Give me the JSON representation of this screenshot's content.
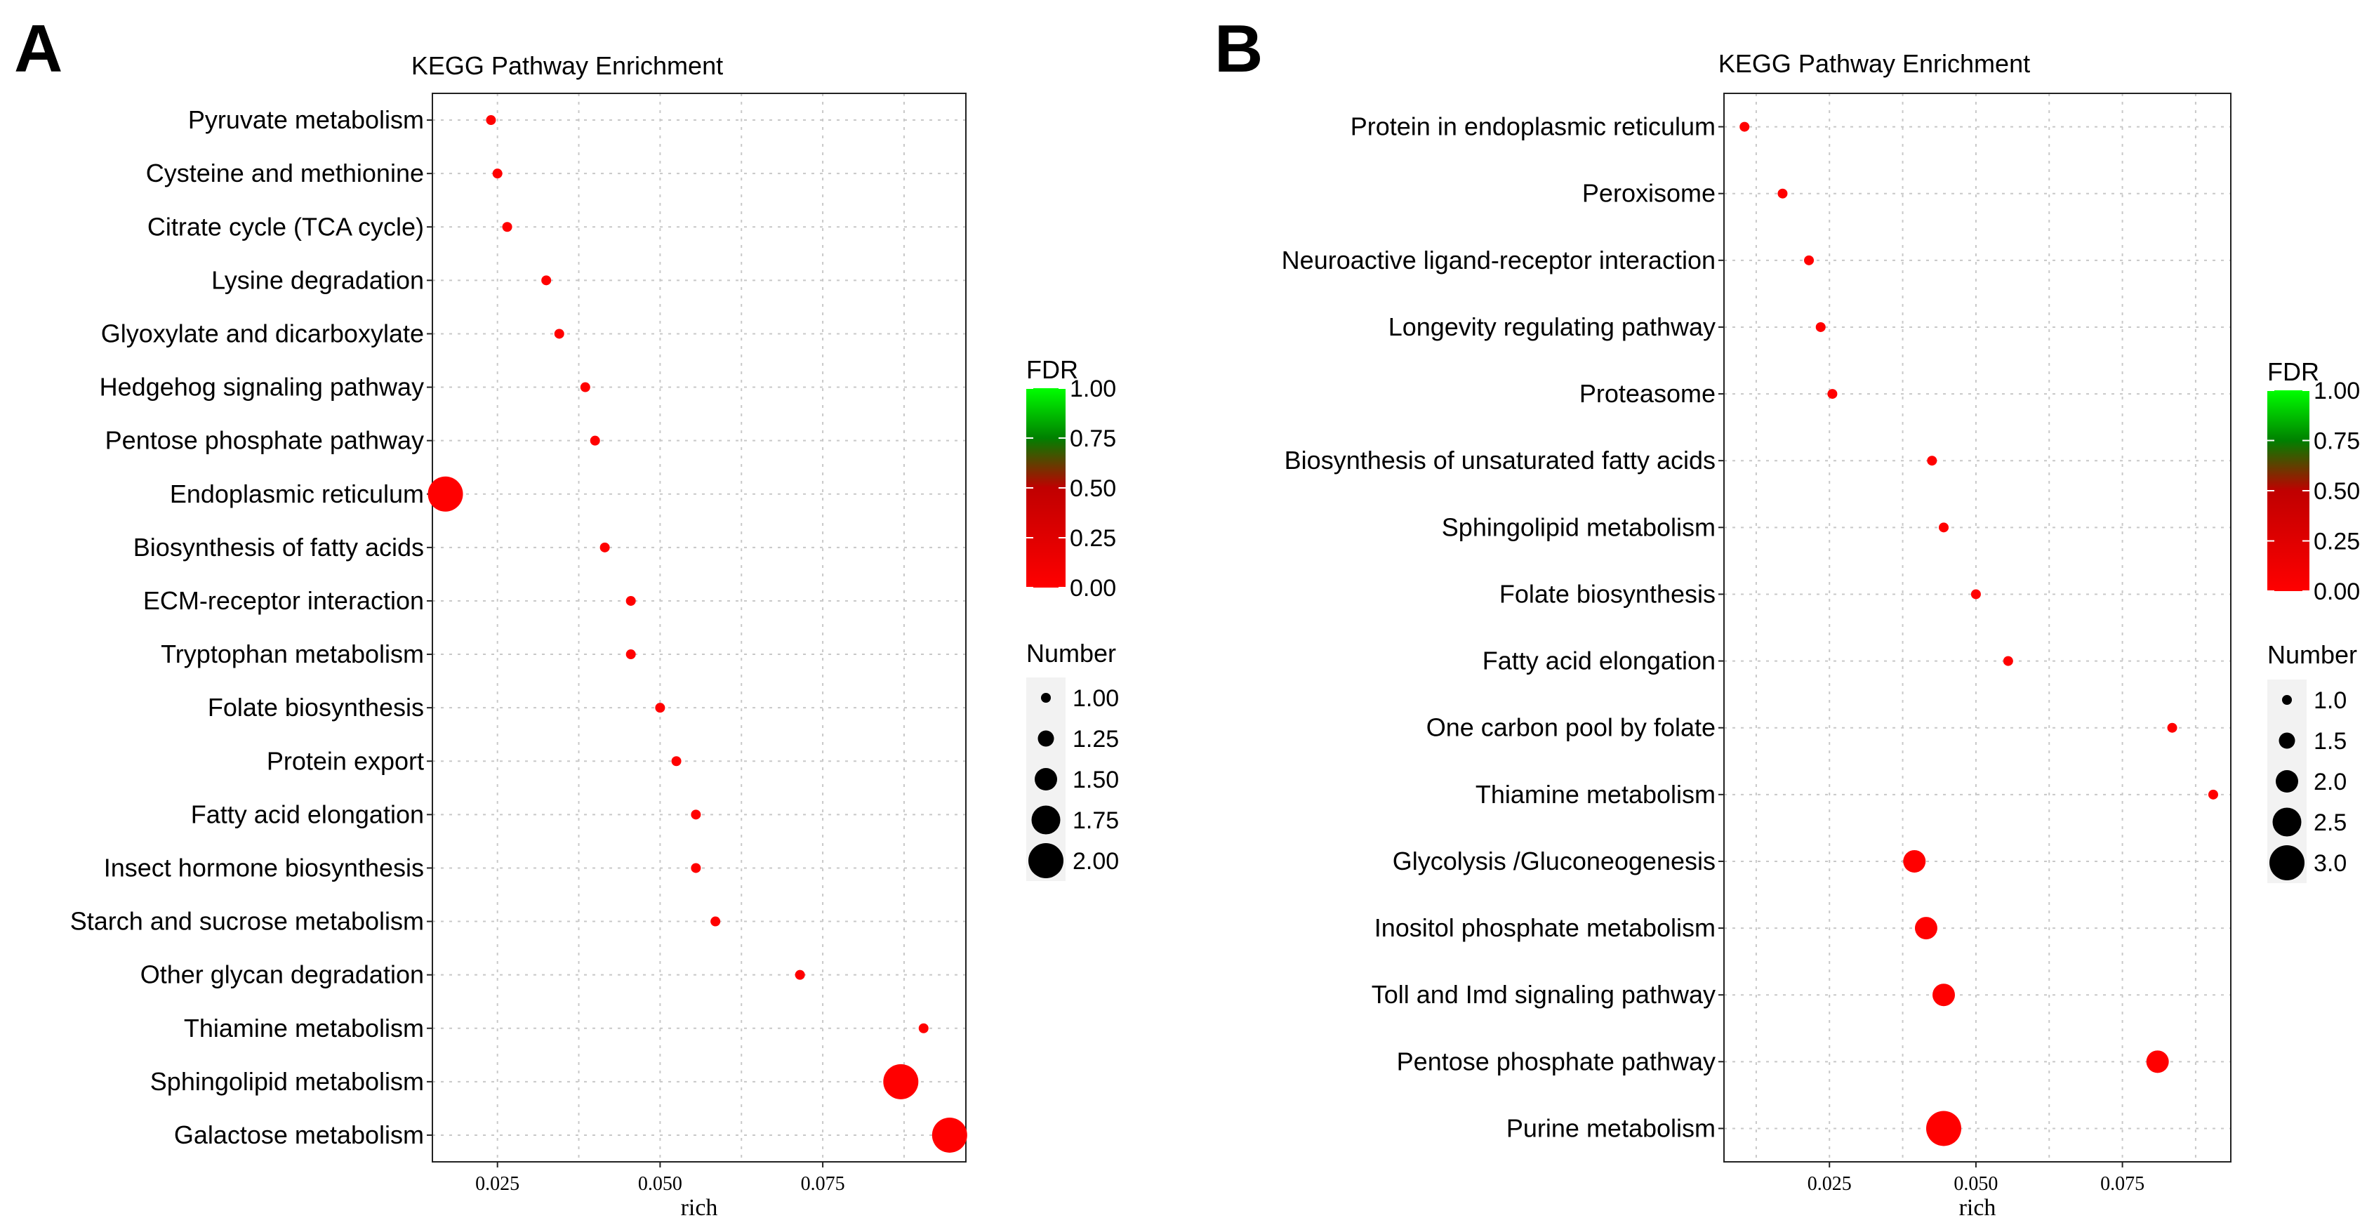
{
  "chart_data": [
    {
      "type": "scatter",
      "panel_label": "A",
      "title": "KEGG Pathway Enrichment",
      "xlabel": "rich",
      "ylabel": "",
      "xlim": [
        0.015,
        0.097
      ],
      "xticks": [
        0.025,
        0.05,
        0.075
      ],
      "xtick_labels": [
        "0.025",
        "0.050",
        "0.075"
      ],
      "grid": true,
      "point_color": "#ff0000",
      "categories": [
        "Pyruvate metabolism",
        "Cysteine and methionine",
        "Citrate cycle (TCA cycle)",
        "Lysine degradation",
        "Glyoxylate and dicarboxylate",
        "Hedgehog signaling pathway",
        "Pentose phosphate pathway",
        "Endoplasmic reticulum",
        "Biosynthesis of fatty acids",
        "ECM-receptor interaction",
        "Tryptophan metabolism",
        "Folate biosynthesis",
        "Protein export",
        "Fatty acid elongation",
        "Insect hormone biosynthesis",
        "Starch and sucrose metabolism",
        "Other glycan degradation",
        "Thiamine metabolism",
        "Sphingolipid  metabolism",
        "Galactose metabolism"
      ],
      "x": [
        0.024,
        0.025,
        0.0265,
        0.0325,
        0.0345,
        0.0385,
        0.04,
        0.017,
        0.0415,
        0.0455,
        0.0455,
        0.05,
        0.0525,
        0.0555,
        0.0555,
        0.0585,
        0.0715,
        0.0905,
        0.087,
        0.0945
      ],
      "number": [
        1,
        1,
        1,
        1,
        1,
        1,
        1,
        2,
        1,
        1,
        1,
        1,
        1,
        1,
        1,
        1,
        1,
        1,
        2,
        2
      ],
      "fdr": [
        0,
        0,
        0,
        0,
        0,
        0,
        0,
        0,
        0,
        0,
        0,
        0,
        0,
        0,
        0,
        0,
        0,
        0,
        0,
        0
      ],
      "legend": {
        "fdr_title": "FDR",
        "fdr_ticks": [
          "1.00",
          "0.75",
          "0.50",
          "0.25",
          "0.00"
        ],
        "size_title": "Number",
        "size_values": [
          1.0,
          1.25,
          1.5,
          1.75,
          2.0
        ],
        "size_labels": [
          "1.00",
          "1.25",
          "1.50",
          "1.75",
          "2.00"
        ],
        "placement": "right"
      }
    },
    {
      "type": "scatter",
      "panel_label": "B",
      "title": "KEGG Pathway Enrichment",
      "xlabel": "rich",
      "ylabel": "",
      "xlim": [
        0.007,
        0.0935
      ],
      "xticks": [
        0.025,
        0.05,
        0.075
      ],
      "xtick_labels": [
        "0.025",
        "0.050",
        "0.075"
      ],
      "grid": true,
      "point_color": "#ff0000",
      "categories": [
        "Protein in endoplasmic reticulum",
        "Peroxisome",
        "Neuroactive ligand-receptor interaction",
        "Longevity regulating pathway",
        "Proteasome",
        "Biosynthesis of unsaturated fatty acids",
        "Sphingolipid metabolism",
        "Folate biosynthesis",
        "Fatty acid elongation",
        "One carbon pool by folate",
        "Thiamine metabolism",
        "Glycolysis /Gluconeogenesis",
        "Inositol phosphate metabolism",
        "Toll and Imd signaling pathway",
        "Pentose phosphate pathway",
        "Purine metabolism"
      ],
      "x": [
        0.0105,
        0.017,
        0.0215,
        0.0235,
        0.0255,
        0.0425,
        0.0445,
        0.05,
        0.0555,
        0.0835,
        0.0905,
        0.0395,
        0.0415,
        0.0445,
        0.081,
        0.0445
      ],
      "number": [
        1,
        1,
        1,
        1,
        1,
        1,
        1,
        1,
        1,
        1,
        1,
        2,
        2,
        2,
        2,
        3
      ],
      "fdr": [
        0,
        0,
        0,
        0,
        0,
        0,
        0,
        0,
        0,
        0,
        0,
        0,
        0,
        0,
        0,
        0
      ],
      "legend": {
        "fdr_title": "FDR",
        "fdr_ticks": [
          "1.00",
          "0.75",
          "0.50",
          "0.25",
          "0.00"
        ],
        "size_title": "Number",
        "size_values": [
          1.0,
          1.5,
          2.0,
          2.5,
          3.0
        ],
        "size_labels": [
          "1.0",
          "1.5",
          "2.0",
          "2.5",
          "3.0"
        ],
        "placement": "right"
      }
    }
  ]
}
